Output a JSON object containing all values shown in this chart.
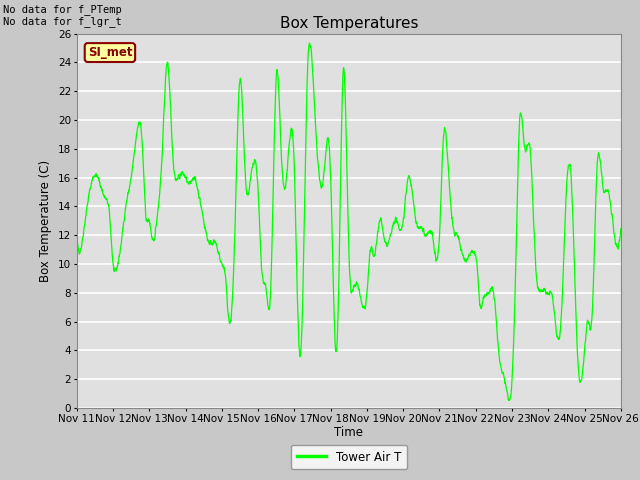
{
  "title": "Box Temperatures",
  "ylabel": "Box Temperature (C)",
  "xlabel": "Time",
  "text_top_left": [
    "No data for f_PTemp",
    "No data for f_lgr_t"
  ],
  "legend_label": "Tower Air T",
  "legend_color": "#00FF00",
  "line_color": "#00FF00",
  "fig_bg_color": "#C8C8C8",
  "plot_bg_color": "#E0E0E0",
  "ylim": [
    0,
    26
  ],
  "yticks": [
    0,
    2,
    4,
    6,
    8,
    10,
    12,
    14,
    16,
    18,
    20,
    22,
    24,
    26
  ],
  "xtick_labels": [
    "Nov 11",
    "Nov 12",
    "Nov 13",
    "Nov 14",
    "Nov 15",
    "Nov 16",
    "Nov 17",
    "Nov 18",
    "Nov 19",
    "Nov 20",
    "Nov 21",
    "Nov 22",
    "Nov 23",
    "Nov 24",
    "Nov 25",
    "Nov 26"
  ],
  "si_met_box": {
    "text": "SI_met",
    "bg": "#FFFFA0",
    "fg": "#8B0000"
  },
  "waypoints_t": [
    0.0,
    0.1,
    0.2,
    0.35,
    0.5,
    0.65,
    0.8,
    0.9,
    1.0,
    1.1,
    1.2,
    1.35,
    1.5,
    1.65,
    1.8,
    1.9,
    2.0,
    2.1,
    2.2,
    2.35,
    2.5,
    2.65,
    2.8,
    3.0,
    3.1,
    3.2,
    3.35,
    3.5,
    3.65,
    3.8,
    4.0,
    4.1,
    4.2,
    4.35,
    4.5,
    4.65,
    4.8,
    5.0,
    5.1,
    5.2,
    5.35,
    5.5,
    5.65,
    5.8,
    6.0,
    6.1,
    6.2,
    6.35,
    6.5,
    6.65,
    6.8,
    7.0,
    7.1,
    7.2,
    7.35,
    7.5,
    7.65,
    7.8,
    8.0,
    8.1,
    8.2,
    8.35,
    8.5,
    8.65,
    8.8,
    9.0,
    9.1,
    9.2,
    9.35,
    9.5,
    9.65,
    9.8,
    10.0,
    10.1,
    10.2,
    10.35,
    10.5,
    10.65,
    10.8,
    11.0,
    11.05,
    11.1,
    11.2,
    11.35,
    11.5,
    11.65,
    11.8,
    12.0,
    12.1,
    12.2,
    12.35,
    12.5,
    12.65,
    12.8,
    13.0,
    13.1,
    13.2,
    13.35,
    13.5,
    13.65,
    13.8,
    14.0,
    14.1,
    14.2,
    14.35,
    14.5,
    14.65,
    14.8,
    15.0
  ],
  "waypoints_y": [
    11.8,
    11.0,
    12.5,
    15.0,
    16.2,
    15.5,
    14.5,
    13.5,
    10.0,
    9.7,
    11.0,
    14.0,
    16.0,
    19.0,
    18.5,
    13.5,
    13.0,
    11.5,
    13.0,
    17.5,
    24.0,
    17.5,
    16.0,
    16.0,
    15.5,
    16.0,
    15.0,
    13.0,
    11.5,
    11.5,
    10.0,
    9.0,
    6.0,
    11.5,
    22.8,
    16.0,
    16.0,
    15.0,
    9.5,
    8.5,
    8.5,
    23.0,
    17.0,
    16.5,
    16.5,
    6.0,
    5.0,
    22.5,
    23.5,
    17.0,
    16.0,
    16.0,
    6.0,
    6.0,
    23.5,
    11.0,
    8.5,
    8.0,
    8.0,
    11.0,
    10.5,
    13.0,
    11.5,
    12.0,
    13.0,
    13.0,
    15.5,
    15.8,
    13.0,
    12.5,
    12.0,
    12.0,
    12.0,
    18.5,
    18.3,
    13.0,
    12.0,
    10.5,
    10.5,
    10.5,
    9.5,
    7.5,
    7.5,
    8.0,
    7.8,
    3.5,
    2.0,
    2.0,
    9.5,
    19.5,
    18.0,
    18.0,
    10.0,
    8.2,
    8.0,
    7.8,
    5.8,
    6.0,
    15.0,
    15.0,
    4.0,
    4.0,
    6.0,
    6.0,
    17.0,
    15.5,
    15.0,
    12.5,
    12.5
  ]
}
